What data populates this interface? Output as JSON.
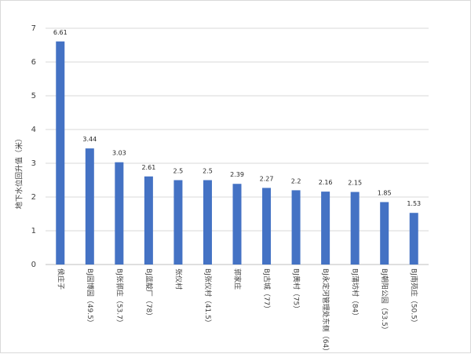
{
  "colors": {
    "bar": "#4472C4",
    "grid": "#d9d9d9",
    "axis": "#bfbfbf"
  },
  "chart_data": {
    "type": "bar",
    "title": "",
    "xlabel": "",
    "ylabel": "地下水位回升值（米）",
    "ylim": [
      0,
      7
    ],
    "yticks": [
      0,
      1,
      2,
      3,
      4,
      5,
      6,
      7
    ],
    "grid": "horizontal",
    "legend": "none",
    "categories": [
      "侯庄子",
      "BJ园博园（49.5）",
      "BJ张郭庄（53.7）",
      "BJ蓝靛厂（78）",
      "张仪村",
      "BJ张仪村（41.5）",
      "郭家庄",
      "BJ古城（77）",
      "BJ黄村（75）",
      "BJ永定河管理处东侧（64）",
      "BJ蒲坊村（84）",
      "BJ朝阳公园（53.5）",
      "BJ南苑庄（50.5）"
    ],
    "values": [
      6.61,
      3.44,
      3.03,
      2.61,
      2.5,
      2.5,
      2.39,
      2.27,
      2.2,
      2.16,
      2.15,
      1.85,
      1.53
    ],
    "data_labels": [
      "6.61",
      "3.44",
      "3.03",
      "2.61",
      "2.5",
      "2.5",
      "2.39",
      "2.27",
      "2.2",
      "2.16",
      "2.15",
      "1.85",
      "1.53"
    ]
  }
}
